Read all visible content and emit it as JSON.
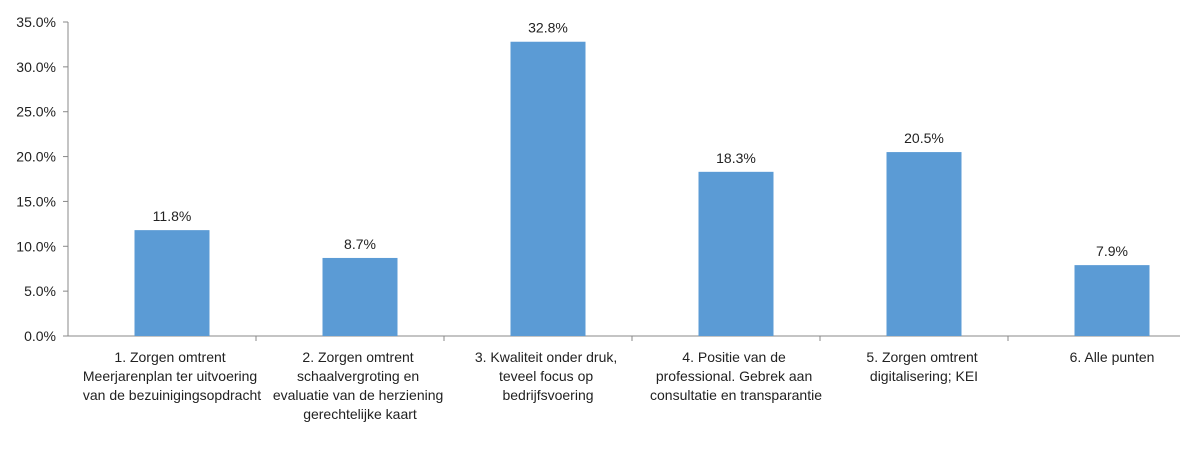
{
  "chart_data": {
    "type": "bar",
    "categories": [
      "1. Zorgen omtrent Meerjarenplan ter uitvoering van de bezuinigingsopdracht",
      "2. Zorgen omtrent schaalvergroting en evaluatie van de herziening gerechtelijke kaart",
      "3. Kwaliteit onder druk, teveel focus op bedrijfsvoering",
      "4. Positie van de professional. Gebrek aan consultatie en transparantie",
      "5. Zorgen omtrent digitalisering; KEI",
      "6.  Alle punten"
    ],
    "values": [
      11.8,
      8.7,
      32.8,
      18.3,
      20.5,
      7.9
    ],
    "value_labels": [
      "11.8%",
      "8.7%",
      "32.8%",
      "18.3%",
      "20.5%",
      "7.9%"
    ],
    "color": "#5b9bd5",
    "ylim": [
      0,
      35
    ],
    "yticks": [
      {
        "value": 0,
        "label": "0.0%"
      },
      {
        "value": 5,
        "label": "5.0%"
      },
      {
        "value": 10,
        "label": "10.0%"
      },
      {
        "value": 15,
        "label": "15.0%"
      },
      {
        "value": 20,
        "label": "20.0%"
      },
      {
        "value": 25,
        "label": "25.0%"
      },
      {
        "value": 30,
        "label": "30.0%"
      },
      {
        "value": 35,
        "label": "35.0%"
      }
    ],
    "grid": false
  }
}
